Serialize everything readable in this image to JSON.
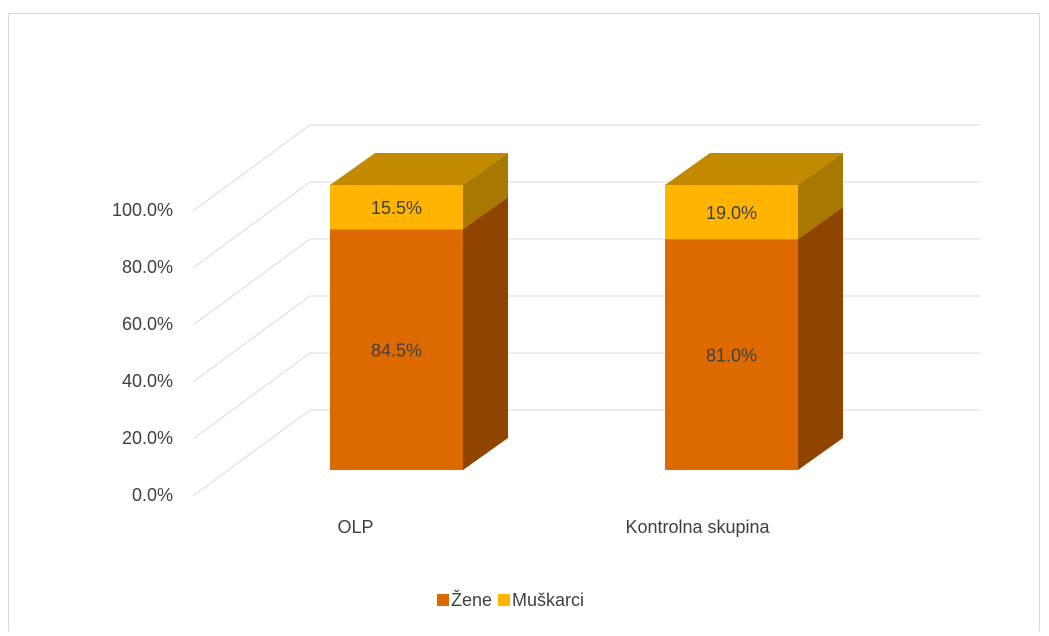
{
  "chart_data": {
    "type": "bar3d_stacked",
    "categories": [
      "OLP",
      "Kontrolna skupina"
    ],
    "series": [
      {
        "name": "Žene",
        "color": "#dd6a00",
        "side_color": "#8f4400",
        "top_color": "#a85200",
        "values": [
          84.5,
          81.0
        ],
        "value_labels": [
          "84.5%",
          "81.0%"
        ]
      },
      {
        "name": "Muškarci",
        "color": "#ffb400",
        "side_color": "#a87800",
        "top_color": "#c38a00",
        "values": [
          15.5,
          19.0
        ],
        "value_labels": [
          "15.5%",
          "19.0%"
        ]
      }
    ],
    "ylim": [
      0,
      100
    ],
    "yticks": [
      {
        "value": 0,
        "label": "0.0%"
      },
      {
        "value": 20,
        "label": "20.0%"
      },
      {
        "value": 40,
        "label": "40.0%"
      },
      {
        "value": 60,
        "label": "60.0%"
      },
      {
        "value": 80,
        "label": "80.0%"
      },
      {
        "value": 100,
        "label": "100.0%"
      }
    ],
    "grid": true,
    "legend": "bottom"
  }
}
